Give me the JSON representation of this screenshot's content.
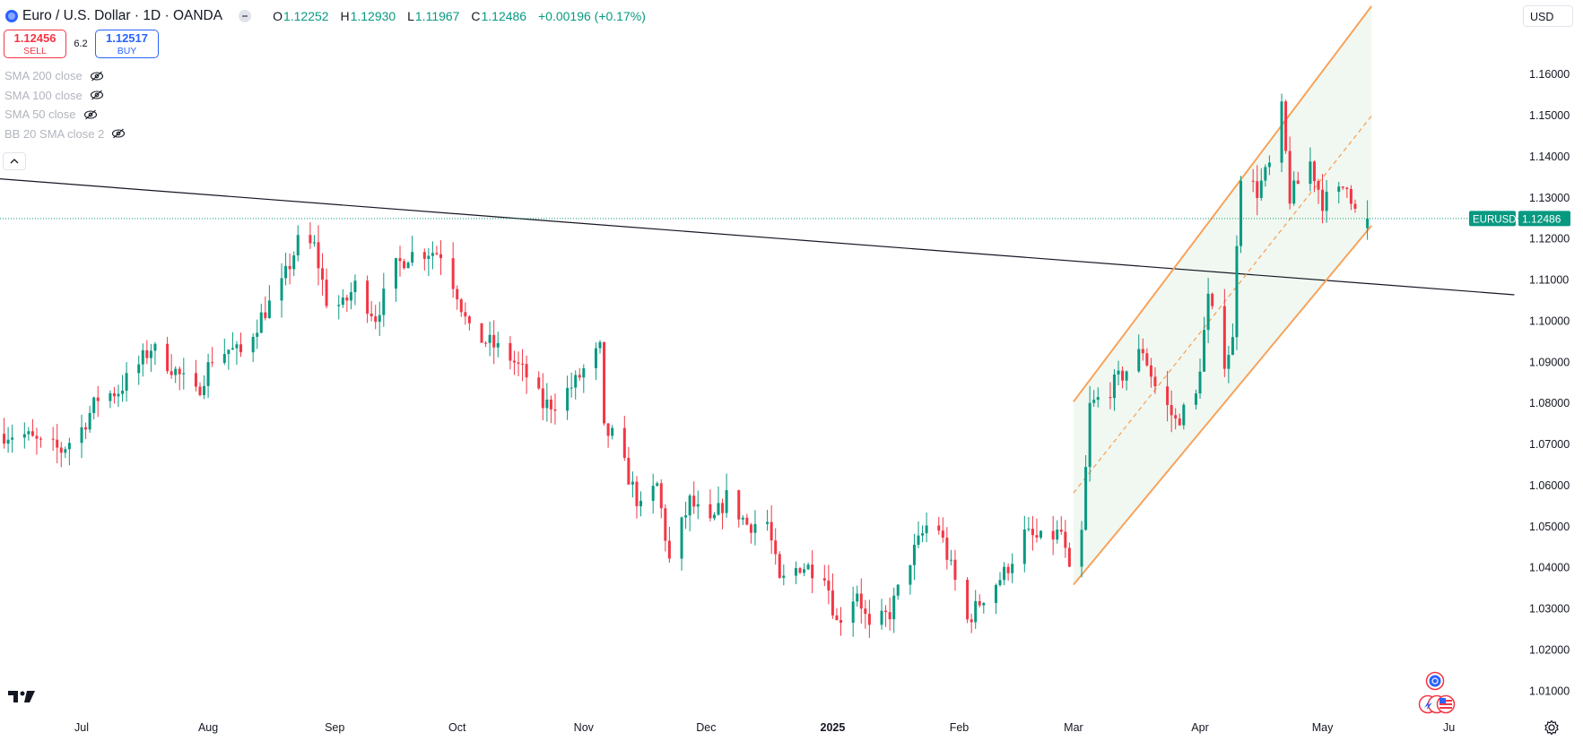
{
  "header": {
    "title": "Euro / U.S. Dollar · 1D · OANDA",
    "ohlc": [
      {
        "key": "O",
        "value": "1.12252"
      },
      {
        "key": "H",
        "value": "1.12930"
      },
      {
        "key": "L",
        "value": "1.11967"
      },
      {
        "key": "C",
        "value": "1.12486"
      }
    ],
    "change": "+0.00196 (+0.17%)"
  },
  "trade": {
    "sell_price": "1.12456",
    "sell_label": "SELL",
    "spread": "6.2",
    "buy_price": "1.12517",
    "buy_label": "BUY"
  },
  "indicators": [
    "SMA 200 close",
    "SMA 100 close",
    "SMA 50 close",
    "BB 20 SMA close 2"
  ],
  "currency_button": "USD",
  "colors": {
    "up": "#089981",
    "down": "#f23645",
    "channel": "#f7a35c",
    "channel_fill": "#f1f8f1",
    "trendline": "#131722",
    "price_line": "#089981",
    "accent": "#2962ff"
  },
  "icons": [
    "tradingview-logo",
    "eye-off-icon",
    "chevron-up-icon",
    "gear-icon",
    "economic-events-icon",
    "us-flag-icon"
  ],
  "chart_data": {
    "type": "candlestick",
    "symbol_label": "EURUSD",
    "last_price": "1.12486",
    "y_ticks": [
      "1.16000",
      "1.15000",
      "1.14000",
      "1.13000",
      "1.12000",
      "1.11000",
      "1.10000",
      "1.09000",
      "1.08000",
      "1.07000",
      "1.06000",
      "1.05000",
      "1.04000",
      "1.03000",
      "1.02000",
      "1.01000"
    ],
    "x_ticks": [
      {
        "label": "Jul",
        "date": "2024-07-01"
      },
      {
        "label": "Aug",
        "date": "2024-08-01"
      },
      {
        "label": "Sep",
        "date": "2024-09-01"
      },
      {
        "label": "Oct",
        "date": "2024-10-01"
      },
      {
        "label": "Nov",
        "date": "2024-11-01"
      },
      {
        "label": "Dec",
        "date": "2024-12-01"
      },
      {
        "label": "2025",
        "date": "2025-01-01",
        "bold": true
      },
      {
        "label": "Feb",
        "date": "2025-02-01"
      },
      {
        "label": "Mar",
        "date": "2025-03-01"
      },
      {
        "label": "Apr",
        "date": "2025-04-01"
      },
      {
        "label": "May",
        "date": "2025-05-01"
      },
      {
        "label": "Ju",
        "date": "2025-06-01"
      }
    ],
    "y_range": [
      1.003,
      1.178
    ],
    "x_range": [
      "2024-06-11",
      "2025-06-18"
    ],
    "close_path": [
      [
        "2024-06-12",
        1.0725
      ],
      [
        "2024-06-17",
        1.0722
      ],
      [
        "2024-06-21",
        1.0698
      ],
      [
        "2024-06-26",
        1.0685
      ],
      [
        "2024-07-01",
        1.0738
      ],
      [
        "2024-07-05",
        1.0812
      ],
      [
        "2024-07-10",
        1.083
      ],
      [
        "2024-07-15",
        1.0893
      ],
      [
        "2024-07-18",
        1.0935
      ],
      [
        "2024-07-23",
        1.0888
      ],
      [
        "2024-07-29",
        1.082
      ],
      [
        "2024-08-02",
        1.091
      ],
      [
        "2024-08-06",
        1.093
      ],
      [
        "2024-08-09",
        1.092
      ],
      [
        "2024-08-14",
        1.101
      ],
      [
        "2024-08-19",
        1.1085
      ],
      [
        "2024-08-23",
        1.119
      ],
      [
        "2024-08-27",
        1.118
      ],
      [
        "2024-08-30",
        1.105
      ],
      [
        "2024-09-03",
        1.1035
      ],
      [
        "2024-09-06",
        1.1085
      ],
      [
        "2024-09-11",
        1.101
      ],
      [
        "2024-09-16",
        1.113
      ],
      [
        "2024-09-19",
        1.116
      ],
      [
        "2024-09-24",
        1.117
      ],
      [
        "2024-09-27",
        1.1165
      ],
      [
        "2024-10-01",
        1.107
      ],
      [
        "2024-10-04",
        1.097
      ],
      [
        "2024-10-09",
        1.0945
      ],
      [
        "2024-10-14",
        1.091
      ],
      [
        "2024-10-18",
        1.0865
      ],
      [
        "2024-10-22",
        1.0795
      ],
      [
        "2024-10-25",
        1.08
      ],
      [
        "2024-10-30",
        1.085
      ],
      [
        "2024-11-01",
        1.088
      ],
      [
        "2024-11-05",
        1.093
      ],
      [
        "2024-11-06",
        1.073
      ],
      [
        "2024-11-08",
        1.072
      ],
      [
        "2024-11-12",
        1.062
      ],
      [
        "2024-11-15",
        1.054
      ],
      [
        "2024-11-19",
        1.06
      ],
      [
        "2024-11-22",
        1.0415
      ],
      [
        "2024-11-27",
        1.056
      ],
      [
        "2024-12-02",
        1.05
      ],
      [
        "2024-12-06",
        1.057
      ],
      [
        "2024-12-11",
        1.0505
      ],
      [
        "2024-12-16",
        1.051
      ],
      [
        "2024-12-19",
        1.036
      ],
      [
        "2024-12-24",
        1.0405
      ],
      [
        "2024-12-30",
        1.039
      ],
      [
        "2025-01-02",
        1.0265
      ],
      [
        "2025-01-07",
        1.0345
      ],
      [
        "2025-01-10",
        1.0245
      ],
      [
        "2025-01-15",
        1.029
      ],
      [
        "2025-01-20",
        1.042
      ],
      [
        "2025-01-24",
        1.05
      ],
      [
        "2025-01-27",
        1.0495
      ],
      [
        "2025-01-31",
        1.0365
      ],
      [
        "2025-02-03",
        1.027
      ],
      [
        "2025-02-07",
        1.033
      ],
      [
        "2025-02-12",
        1.0385
      ],
      [
        "2025-02-17",
        1.048
      ],
      [
        "2025-02-21",
        1.0465
      ],
      [
        "2025-02-26",
        1.0485
      ],
      [
        "2025-02-28",
        1.038
      ],
      [
        "2025-03-03",
        1.048
      ],
      [
        "2025-03-05",
        1.079
      ],
      [
        "2025-03-10",
        1.0835
      ],
      [
        "2025-03-14",
        1.088
      ],
      [
        "2025-03-18",
        1.093
      ],
      [
        "2025-03-21",
        1.084
      ],
      [
        "2025-03-26",
        1.0755
      ],
      [
        "2025-03-31",
        1.0815
      ],
      [
        "2025-04-03",
        1.105
      ],
      [
        "2025-04-07",
        1.0905
      ],
      [
        "2025-04-09",
        1.095
      ],
      [
        "2025-04-10",
        1.12
      ],
      [
        "2025-04-11",
        1.136
      ],
      [
        "2025-04-15",
        1.1315
      ],
      [
        "2025-04-18",
        1.1375
      ],
      [
        "2025-04-21",
        1.151
      ],
      [
        "2025-04-23",
        1.13
      ],
      [
        "2025-04-28",
        1.1385
      ],
      [
        "2025-05-01",
        1.129
      ],
      [
        "2025-05-05",
        1.131
      ],
      [
        "2025-05-07",
        1.134
      ],
      [
        "2025-05-09",
        1.1265
      ],
      [
        "2025-05-12",
        1.1245
      ]
    ],
    "trendline": [
      [
        "2024-06-11",
        1.1345
      ],
      [
        "2025-06-17",
        1.1063
      ]
    ],
    "channel": {
      "upper": [
        [
          "2025-03-01",
          1.0803
        ],
        [
          "2025-05-13",
          1.1765
        ]
      ],
      "middle": [
        [
          "2025-03-01",
          1.0581
        ],
        [
          "2025-05-13",
          1.1498
        ]
      ],
      "lower": [
        [
          "2025-03-01",
          1.0358
        ],
        [
          "2025-05-13",
          1.1231
        ]
      ]
    }
  }
}
